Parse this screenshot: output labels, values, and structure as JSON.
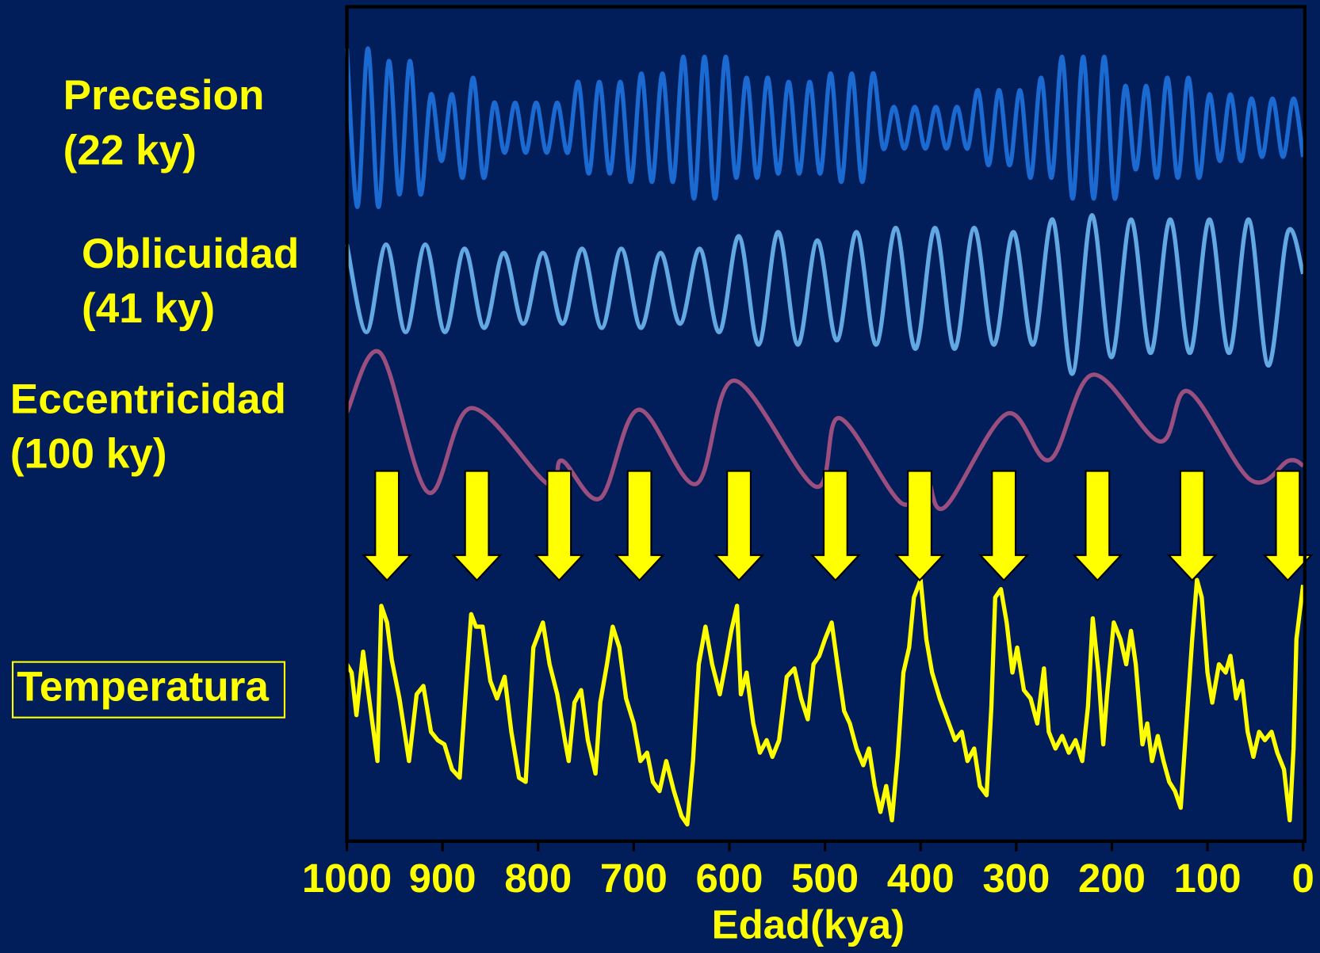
{
  "chart_data": {
    "type": "line",
    "xlabel": "Edad(kya)",
    "xlim": [
      1000,
      0
    ],
    "xticks": [
      1000,
      900,
      800,
      700,
      600,
      500,
      400,
      300,
      200,
      100,
      0
    ],
    "ylim": [
      0,
      100
    ],
    "arrow_x": [
      958,
      864,
      778,
      694,
      590,
      489,
      401,
      313,
      215,
      116,
      16
    ],
    "arrow_color": "#ffff00",
    "series": [
      {
        "name": "Precesion",
        "period": "(22 ky)",
        "color": "#1a6ad2",
        "smooth": true,
        "x": [
          1000,
          989,
          978,
          967,
          956,
          945,
          934,
          923,
          912,
          901,
          890,
          879,
          868,
          857,
          846,
          835,
          824,
          813,
          802,
          791,
          780,
          769,
          758,
          747,
          736,
          725,
          714,
          703,
          692,
          681,
          670,
          659,
          648,
          637,
          626,
          615,
          604,
          593,
          582,
          571,
          560,
          549,
          538,
          527,
          516,
          505,
          494,
          483,
          472,
          461,
          450,
          439,
          428,
          417,
          406,
          395,
          384,
          373,
          362,
          351,
          340,
          329,
          318,
          307,
          296,
          285,
          274,
          263,
          252,
          241,
          230,
          219,
          208,
          197,
          186,
          175,
          164,
          153,
          142,
          131,
          120,
          109,
          98,
          87,
          76,
          65,
          54,
          43,
          32,
          21,
          10,
          0
        ],
        "values": [
          95,
          76,
          95,
          76,
          93.5,
          77.5,
          93.5,
          77.5,
          89.5,
          81.5,
          89.5,
          79.5,
          91.5,
          79.5,
          88.5,
          82.5,
          88.5,
          82.5,
          88.5,
          82.5,
          88.5,
          82.5,
          91,
          80,
          91,
          80,
          91,
          79,
          92,
          79,
          92,
          79,
          94,
          77,
          94,
          77,
          94,
          79.5,
          91.5,
          79.5,
          91.5,
          80,
          91,
          80,
          91,
          80,
          92,
          79,
          92,
          79,
          92,
          83,
          88,
          83,
          88,
          83,
          88,
          83,
          88,
          83,
          90,
          81,
          90,
          81,
          90,
          79.5,
          91.5,
          79.5,
          94,
          77,
          94,
          77,
          94,
          77,
          90.5,
          80.5,
          90.5,
          79.5,
          91.5,
          79.5,
          91.5,
          79.5,
          89.5,
          81.5,
          89.5,
          81.5,
          89,
          82,
          89,
          82,
          89,
          82
        ]
      },
      {
        "name": "Oblicuidad",
        "period": "(41 ky)",
        "color": "#62a8e2",
        "smooth": true,
        "x": [
          1000,
          979.5,
          959,
          938.5,
          918,
          897.5,
          877,
          856.5,
          836,
          815.5,
          795,
          774.5,
          754,
          733.5,
          713,
          692.5,
          672,
          651.5,
          631,
          610.5,
          590,
          569.5,
          549,
          528.5,
          508,
          487.5,
          467,
          446.5,
          426,
          405.5,
          385,
          364.5,
          344,
          323.5,
          303,
          282.5,
          262,
          241.5,
          221,
          200.5,
          180,
          159.5,
          139,
          118.5,
          98,
          77.5,
          57,
          36.5,
          16,
          0
        ],
        "values": [
          71.5,
          61,
          71.5,
          61,
          71.5,
          61,
          71,
          61.5,
          70.5,
          62,
          70.5,
          62,
          71,
          61.5,
          71,
          61.5,
          70.5,
          62,
          71,
          61,
          72.5,
          59.5,
          73,
          59.5,
          72,
          60,
          73,
          59.5,
          73.5,
          59,
          73.5,
          59,
          73.5,
          59.5,
          73,
          59.5,
          74.5,
          56,
          75,
          58,
          74.5,
          58.5,
          74.5,
          58.5,
          74.5,
          58.5,
          74.5,
          57,
          73,
          68
        ]
      },
      {
        "name": "Eccentricidad",
        "period": "(100 ky)",
        "color": "#9b4f7f",
        "smooth": true,
        "x": [
          1000,
          965,
          915,
          870,
          790,
          775,
          735,
          695,
          635,
          595,
          510,
          485,
          420,
          395,
          375,
          310,
          265,
          220,
          150,
          120,
          55,
          15,
          0
        ],
        "values": [
          51.4,
          58.5,
          41.8,
          51.9,
          42.8,
          45.6,
          41.1,
          51.7,
          42.8,
          55.2,
          42.5,
          50.7,
          40.5,
          43.9,
          40,
          51.2,
          45.7,
          55.9,
          47.9,
          53.9,
          43.3,
          45.6,
          45
        ]
      },
      {
        "name": "Temperatura",
        "color": "#ffff00",
        "smooth": false,
        "boxed": true,
        "x": [
          1000,
          995,
          990,
          983,
          975,
          968,
          964,
          958,
          953,
          945,
          935,
          927,
          920,
          912,
          905,
          898,
          890,
          882,
          878,
          870,
          865,
          858,
          850,
          843,
          835,
          828,
          820,
          813,
          805,
          795,
          788,
          780,
          772,
          768,
          762,
          755,
          748,
          740,
          735,
          728,
          722,
          715,
          708,
          700,
          693,
          686,
          680,
          673,
          666,
          658,
          650,
          644,
          638,
          632,
          625,
          618,
          610,
          604,
          598,
          592,
          588,
          582,
          575,
          568,
          561,
          555,
          548,
          540,
          532,
          525,
          518,
          512,
          506,
          500,
          493,
          487,
          480,
          474,
          467,
          460,
          454,
          448,
          442,
          436,
          430,
          424,
          418,
          412,
          407,
          400,
          394,
          388,
          380,
          372,
          364,
          357,
          351,
          344,
          338,
          331,
          326,
          322,
          316,
          310,
          304,
          299,
          292,
          285,
          278,
          271,
          266,
          259,
          252,
          245,
          238,
          231,
          225,
          220,
          214,
          209,
          205,
          198,
          191,
          185,
          180,
          175,
          168,
          163,
          158,
          152,
          146,
          140,
          134,
          128,
          122,
          116,
          111,
          106,
          100,
          95,
          88,
          81,
          76,
          70,
          64,
          58,
          52,
          46,
          40,
          33,
          27,
          20,
          14,
          10,
          7,
          0
        ],
        "values": [
          21.2,
          20.2,
          15.1,
          22.7,
          15.6,
          9.6,
          28.2,
          26.2,
          21.7,
          17.1,
          9.6,
          17.6,
          18.6,
          13.1,
          12.1,
          11.6,
          8.6,
          7.6,
          14.1,
          27.2,
          25.7,
          25.7,
          19.2,
          17.1,
          19.7,
          13.1,
          7.6,
          7.1,
          23.2,
          26.2,
          21.2,
          17.6,
          12.1,
          9.6,
          16.6,
          18.1,
          12.1,
          8.1,
          16.6,
          21.2,
          25.7,
          23.2,
          17.1,
          14.1,
          9.6,
          10.6,
          7.1,
          6,
          9.6,
          6,
          3,
          2,
          9.6,
          21.2,
          25.7,
          21.2,
          17.6,
          21.2,
          25.2,
          28.2,
          17.6,
          20.2,
          14.1,
          10.6,
          12.1,
          10.1,
          12.1,
          19.7,
          20.7,
          17.1,
          14.6,
          21.2,
          22.2,
          24.2,
          26.2,
          21.2,
          15.6,
          14.1,
          11.1,
          9.1,
          11.1,
          6.6,
          3.5,
          6.6,
          2.5,
          10.1,
          20.2,
          23.2,
          29.2,
          31.3,
          24.2,
          20.2,
          17.1,
          14.6,
          12.1,
          13.1,
          9.6,
          11.1,
          6.6,
          5.5,
          16.1,
          29.2,
          30.2,
          26.2,
          20.2,
          23.2,
          18.1,
          17.1,
          14.1,
          20.7,
          13.1,
          11.1,
          12.6,
          10.6,
          12.1,
          9.6,
          16.1,
          26.7,
          20.2,
          11.6,
          17.6,
          26.2,
          24.2,
          21.2,
          25.2,
          21.2,
          11.6,
          14.1,
          9.6,
          12.6,
          9.6,
          7.1,
          6,
          4,
          14.1,
          24.2,
          31.3,
          29.2,
          20.2,
          16.6,
          21.2,
          20.2,
          22.2,
          17.1,
          19.2,
          13.1,
          10.1,
          13.1,
          12.1,
          13.1,
          10.6,
          8.6,
          2.5,
          11.1,
          24.2,
          30.7
        ]
      }
    ]
  }
}
